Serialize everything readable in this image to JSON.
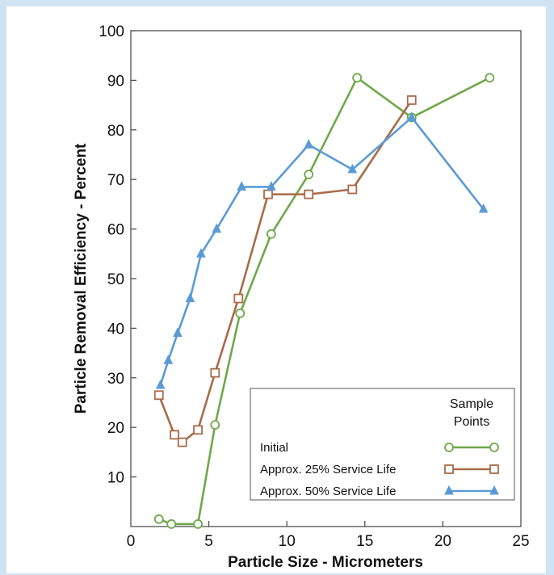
{
  "chart_data": {
    "type": "line",
    "title": "",
    "xlabel": "Particle Size - Micrometers",
    "ylabel": "Particle Removal Efficiency - Percent",
    "xlim": [
      0,
      25
    ],
    "ylim": [
      0,
      100
    ],
    "xticks": [
      "0",
      "5",
      "10",
      "15",
      "20",
      "25"
    ],
    "yticks": [
      "10",
      "20",
      "30",
      "40",
      "50",
      "60",
      "70",
      "80",
      "90",
      "100"
    ],
    "grid": false,
    "legend_title": [
      "Sample",
      "Points"
    ],
    "legend_position": "bottom-right",
    "series": [
      {
        "name": "Initial",
        "color": "#6fa84a",
        "marker": "circle",
        "points": [
          [
            1.8,
            1.5
          ],
          [
            2.6,
            0.5
          ],
          [
            4.3,
            0.5
          ],
          [
            5.4,
            20.5
          ],
          [
            7.0,
            43.0
          ],
          [
            9.0,
            59.0
          ],
          [
            11.4,
            71.0
          ],
          [
            14.5,
            90.5
          ],
          [
            18.0,
            82.5
          ],
          [
            23.0,
            90.5
          ]
        ]
      },
      {
        "name": "Approx. 25% Service Life",
        "color": "#a86b4a",
        "marker": "square",
        "points": [
          [
            1.8,
            26.5
          ],
          [
            2.8,
            18.5
          ],
          [
            3.3,
            17.0
          ],
          [
            4.3,
            19.5
          ],
          [
            5.4,
            31.0
          ],
          [
            6.9,
            46.0
          ],
          [
            8.8,
            67.0
          ],
          [
            11.4,
            67.0
          ],
          [
            14.2,
            68.0
          ],
          [
            18.0,
            86.0
          ]
        ]
      },
      {
        "name": "Approx. 50% Service Life",
        "color": "#5a9bd5",
        "marker": "triangle",
        "points": [
          [
            1.9,
            28.5
          ],
          [
            2.4,
            33.5
          ],
          [
            3.0,
            39.0
          ],
          [
            3.8,
            46.0
          ],
          [
            4.5,
            55.0
          ],
          [
            5.5,
            60.0
          ],
          [
            7.1,
            68.5
          ],
          [
            9.0,
            68.5
          ],
          [
            11.4,
            77.0
          ],
          [
            14.2,
            72.0
          ],
          [
            18.0,
            82.5
          ],
          [
            22.6,
            64.0
          ]
        ]
      }
    ]
  }
}
